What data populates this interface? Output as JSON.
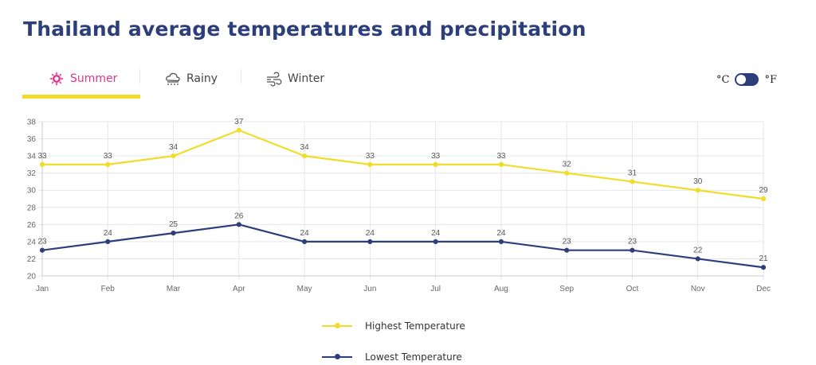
{
  "page": {
    "title": "Thailand average temperatures and precipitation"
  },
  "tabs": [
    {
      "label": "Summer",
      "icon": "sun-icon",
      "active": true
    },
    {
      "label": "Rainy",
      "icon": "rain-cloud-icon",
      "active": false
    },
    {
      "label": "Winter",
      "icon": "wind-icon",
      "active": false
    }
  ],
  "unit_toggle": {
    "left_label": "°C",
    "right_label": "°F",
    "selected": "°C"
  },
  "colors": {
    "title": "#2d3f7b",
    "active_tab": "#e0348a",
    "tab_underline": "#f2dc2a",
    "highest": "#f2dc2a",
    "lowest": "#2d3f7b"
  },
  "chart_data": {
    "type": "line",
    "title": "",
    "xlabel": "",
    "ylabel": "",
    "categories": [
      "Jan",
      "Feb",
      "Mar",
      "Apr",
      "May",
      "Jun",
      "Jul",
      "Aug",
      "Sep",
      "Oct",
      "Nov",
      "Dec"
    ],
    "ylim": [
      20,
      38
    ],
    "yticks": [
      20,
      22,
      24,
      26,
      28,
      30,
      32,
      34,
      36,
      38
    ],
    "grid": true,
    "data_labels": true,
    "legend_position": "bottom-center",
    "series": [
      {
        "name": "Highest Temperature",
        "color": "#f2dc2a",
        "values": [
          33,
          33,
          34,
          37,
          34,
          33,
          33,
          33,
          32,
          31,
          30,
          29
        ]
      },
      {
        "name": "Lowest Temperature",
        "color": "#2d3f7b",
        "values": [
          23,
          24,
          25,
          26,
          24,
          24,
          24,
          24,
          23,
          23,
          22,
          21
        ]
      }
    ]
  }
}
